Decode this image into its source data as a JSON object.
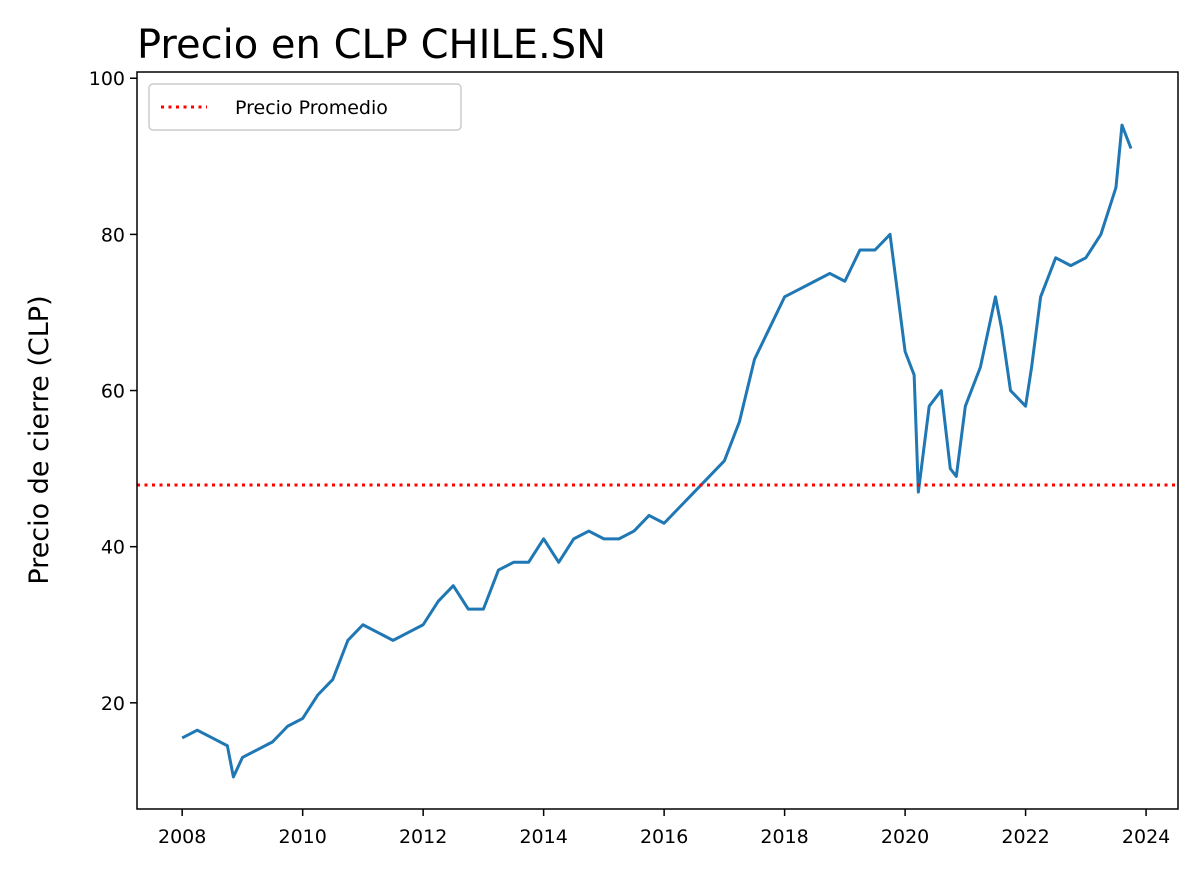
{
  "chart_data": {
    "type": "line",
    "title": "Precio en CLP CHILE.SN",
    "y_label": "Precio de cierre (CLP)",
    "x": [
      2008.0,
      2008.25,
      2008.5,
      2008.75,
      2008.85,
      2009.0,
      2009.25,
      2009.5,
      2009.75,
      2010.0,
      2010.25,
      2010.5,
      2010.75,
      2011.0,
      2011.25,
      2011.5,
      2011.75,
      2012.0,
      2012.25,
      2012.5,
      2012.75,
      2013.0,
      2013.25,
      2013.5,
      2013.75,
      2014.0,
      2014.25,
      2014.5,
      2014.75,
      2015.0,
      2015.25,
      2015.5,
      2015.75,
      2016.0,
      2016.25,
      2016.5,
      2016.75,
      2017.0,
      2017.25,
      2017.5,
      2017.75,
      2018.0,
      2018.25,
      2018.5,
      2018.75,
      2019.0,
      2019.25,
      2019.5,
      2019.75,
      2020.0,
      2020.15,
      2020.22,
      2020.4,
      2020.6,
      2020.75,
      2020.85,
      2021.0,
      2021.25,
      2021.5,
      2021.6,
      2021.75,
      2022.0,
      2022.1,
      2022.25,
      2022.5,
      2022.75,
      2023.0,
      2023.25,
      2023.5,
      2023.6,
      2023.75
    ],
    "series": [
      {
        "name": "Precio",
        "color": "#1f77b4",
        "values": [
          15.5,
          16.5,
          15.5,
          14.5,
          10.5,
          13,
          14,
          15,
          17,
          18,
          21,
          23,
          28,
          30,
          29,
          28,
          29,
          30,
          33,
          35,
          32,
          32,
          37,
          38,
          38,
          41,
          38,
          41,
          42,
          41,
          41,
          42,
          44,
          43,
          45,
          47,
          49,
          51,
          56,
          64,
          68,
          72,
          73,
          74,
          75,
          74,
          78,
          78,
          80,
          65,
          62,
          47,
          58,
          60,
          50,
          49,
          58,
          63,
          72,
          68,
          60,
          58,
          63,
          72,
          77,
          76,
          77,
          80,
          86,
          94,
          91
        ]
      }
    ],
    "reference_line": {
      "name": "Precio Promedio",
      "value": 47.9,
      "color": "#ff0000"
    },
    "xlim": [
      2007.25,
      2024.53
    ],
    "xticks": [
      2008,
      2010,
      2012,
      2014,
      2016,
      2018,
      2020,
      2022,
      2024
    ],
    "ylim": [
      6.4,
      100.8
    ],
    "yticks": [
      20,
      40,
      60,
      80,
      100
    ],
    "legend": "upper left"
  }
}
